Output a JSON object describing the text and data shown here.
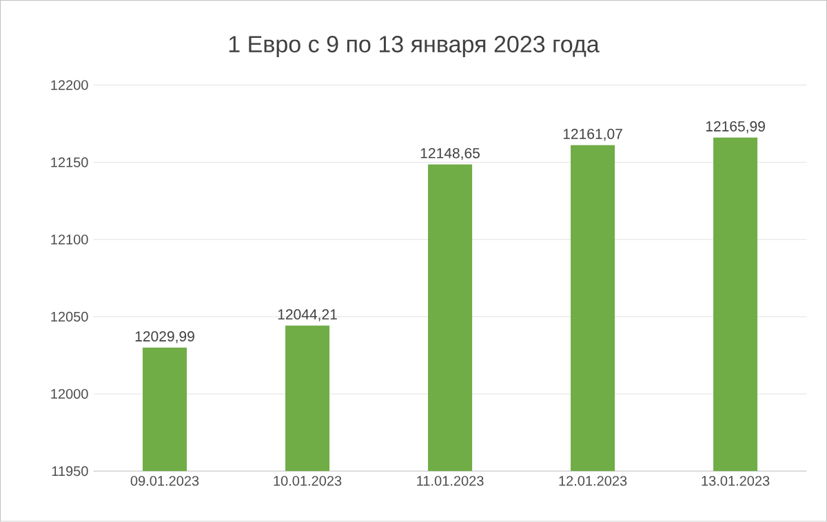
{
  "chart_data": {
    "type": "bar",
    "title": "1 Евро с 9 по 13 января 2023 года",
    "categories": [
      "09.01.2023",
      "10.01.2023",
      "11.01.2023",
      "12.01.2023",
      "13.01.2023"
    ],
    "values": [
      12029.99,
      12044.21,
      12148.65,
      12161.07,
      12165.99
    ],
    "value_labels": [
      "12029,99",
      "12044,21",
      "12148,65",
      "12161,07",
      "12165,99"
    ],
    "color": "#70ad47",
    "ylim": [
      11950,
      12200
    ],
    "yticks": [
      11950,
      12000,
      12050,
      12100,
      12150,
      12200
    ],
    "grid": "y"
  }
}
